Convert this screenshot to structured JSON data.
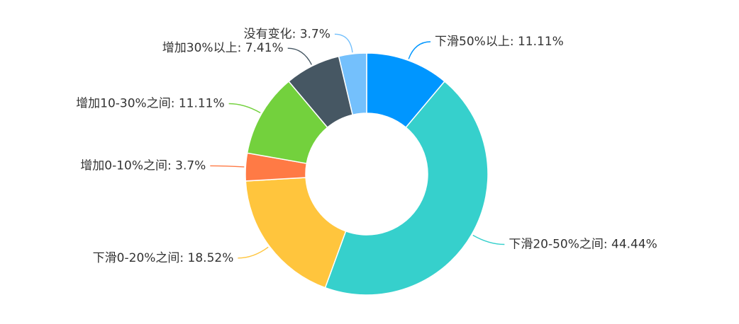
{
  "chart_data": {
    "type": "pie",
    "variant": "donut",
    "start_angle_deg": 90,
    "direction": "clockwise",
    "slices": [
      {
        "label": "下滑50%以上",
        "value": 11.11,
        "value_label": "11.11%",
        "color": "#0096FF"
      },
      {
        "label": "下滑20-50%之间",
        "value": 44.44,
        "value_label": "44.44%",
        "color": "#36D0CC"
      },
      {
        "label": "下滑0-20%之间",
        "value": 18.52,
        "value_label": "18.52%",
        "color": "#FFC53D"
      },
      {
        "label": "增加0-10%之间",
        "value": 3.7,
        "value_label": "3.7%",
        "color": "#FF7A45"
      },
      {
        "label": "增加10-30%之间",
        "value": 11.11,
        "value_label": "11.11%",
        "color": "#73D13D"
      },
      {
        "label": "增加30%以上",
        "value": 7.41,
        "value_label": "7.41%",
        "color": "#465763"
      },
      {
        "label": "没有变化",
        "value": 3.7,
        "value_label": "3.7%",
        "color": "#74C0FC"
      }
    ]
  }
}
